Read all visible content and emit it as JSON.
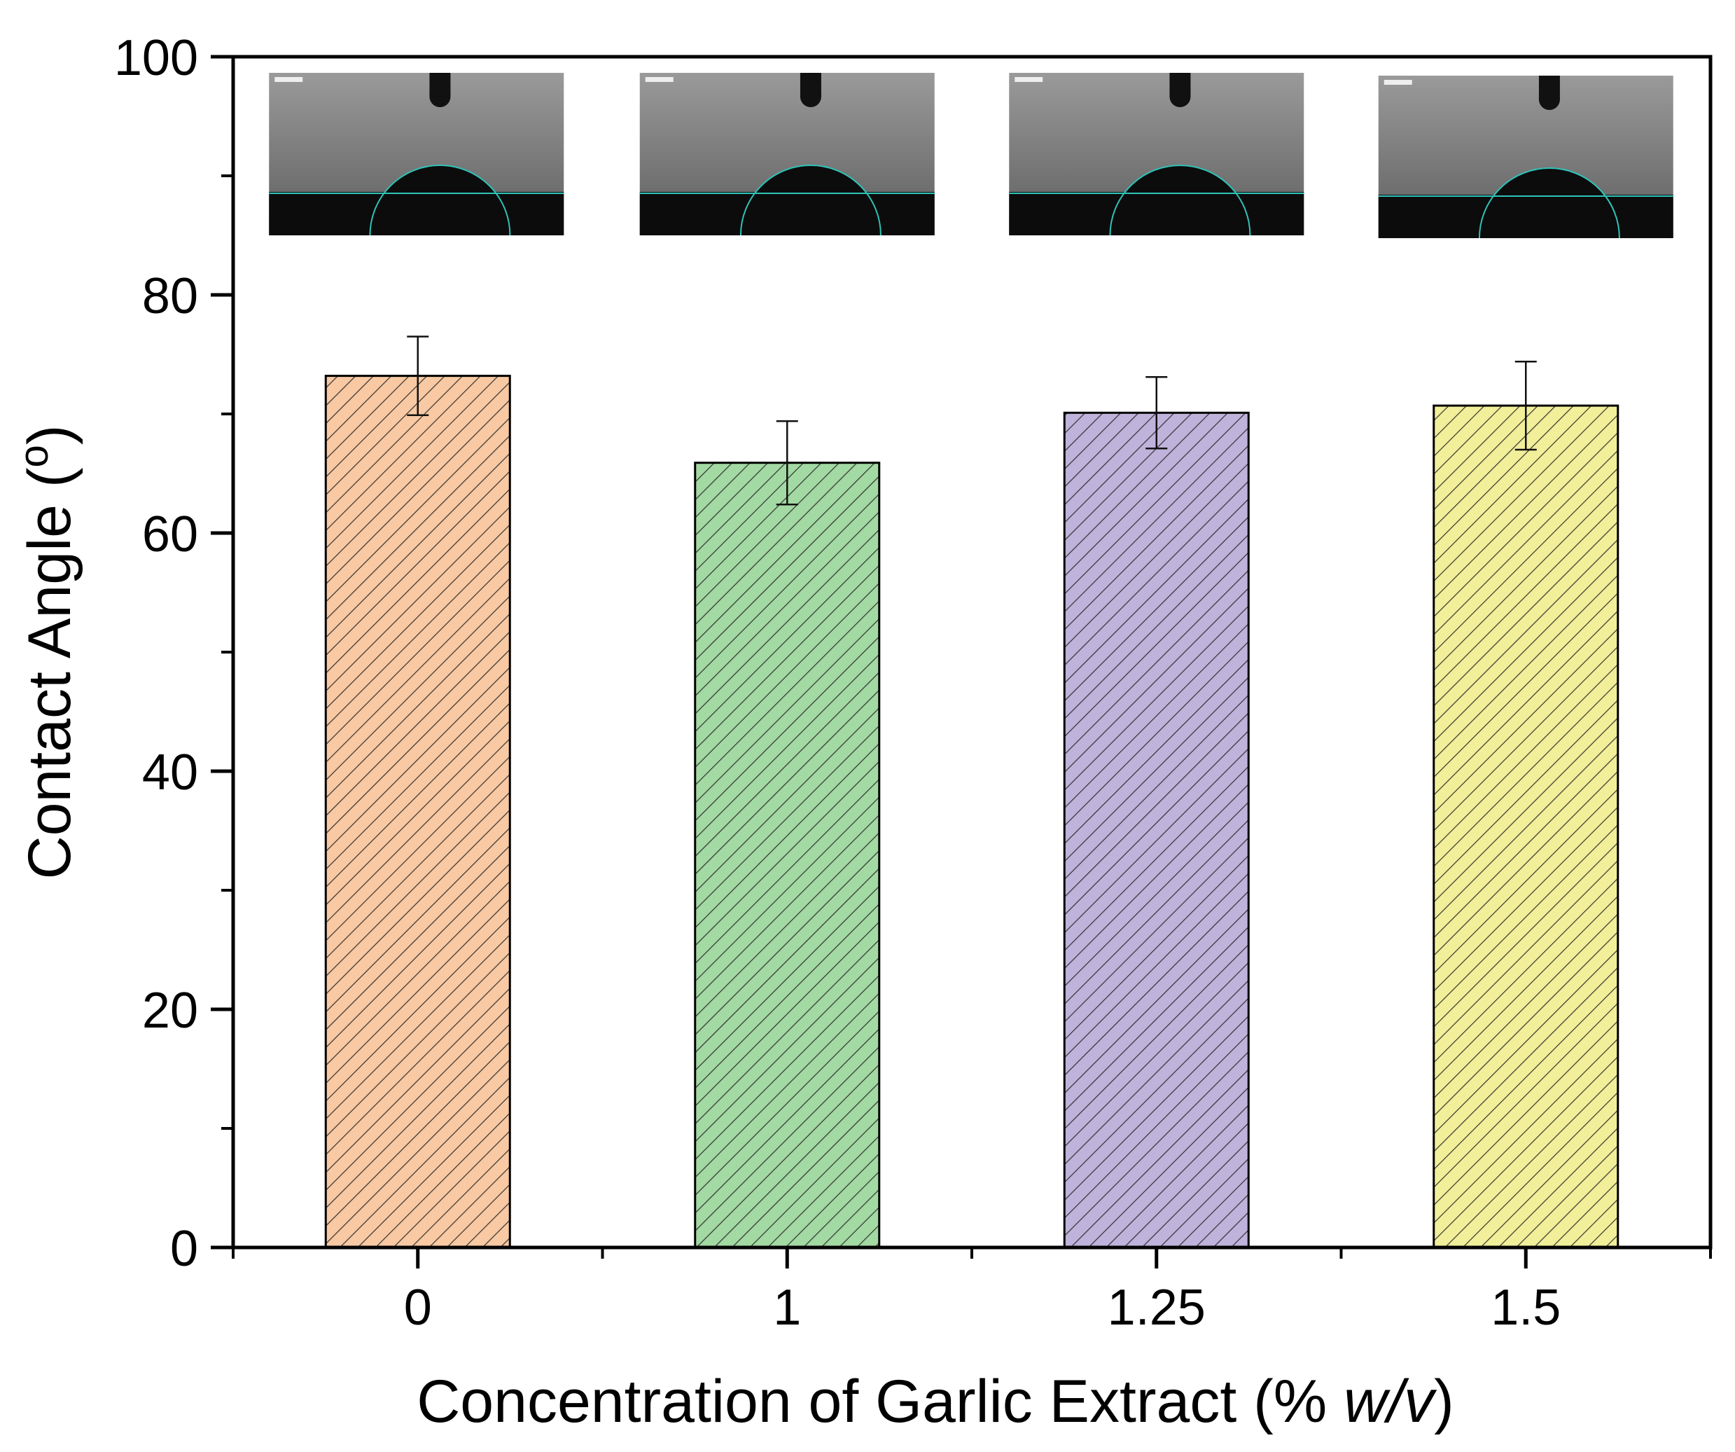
{
  "chart_data": {
    "type": "bar",
    "title": "",
    "xlabel": "Concentration of Garlic Extract (% ",
    "xlabel_italic": "w/v",
    "xlabel_close": ")",
    "ylabel": "Contact Angle (",
    "ylabel_sup": "o",
    "ylabel_close": ")",
    "categories": [
      "0",
      "1",
      "1.25",
      "1.5"
    ],
    "values": [
      73.2,
      65.9,
      70.1,
      70.7
    ],
    "errors": [
      3.3,
      3.5,
      3.0,
      3.7
    ],
    "ylim": [
      0,
      100
    ],
    "yticks": [
      "0",
      "20",
      "40",
      "60",
      "80",
      "100"
    ],
    "colors": [
      "#f8c9a3",
      "#a3d9a3",
      "#bfb3db",
      "#f2ef9a"
    ],
    "hatch": "diagonal",
    "grid": false,
    "legend": "none",
    "insets": "contact-angle-droplet-photos",
    "inset_colors": {
      "background": "#7f7f7f",
      "substrate": "#0c0c0c",
      "fit_line": "#2fc3b8"
    }
  }
}
